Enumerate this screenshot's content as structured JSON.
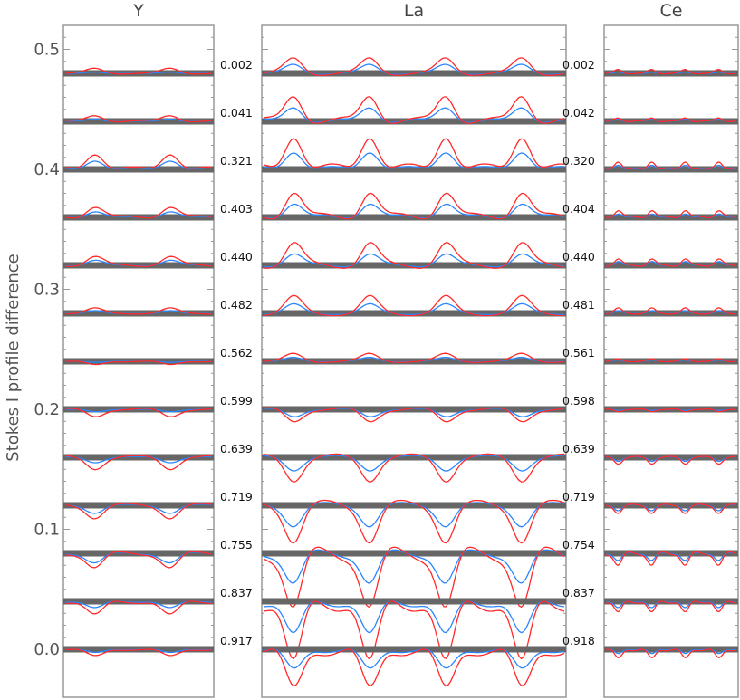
{
  "chart_data": {
    "type": "line",
    "ylabel": "Stokes I profile difference",
    "ylim": [
      -0.04,
      0.52
    ],
    "y_ticks": [
      "0.0",
      "0.1",
      "0.2",
      "0.3",
      "0.4",
      "0.5"
    ],
    "y_tick_values": [
      0.0,
      0.1,
      0.2,
      0.3,
      0.4,
      0.5
    ],
    "row_offsets": [
      0.48,
      0.44,
      0.4,
      0.36,
      0.32,
      0.28,
      0.24,
      0.2,
      0.16,
      0.12,
      0.08,
      0.04,
      0.0
    ],
    "colors": {
      "series_a": "#ff2a2a",
      "series_b": "#2a86ff",
      "baseline": "#666666",
      "axis": "#999999"
    },
    "panels": [
      {
        "title": "Y",
        "row_labels": [],
        "n_lines": 2,
        "red_amplitude": [
          0.004,
          0.005,
          0.014,
          0.009,
          0.007,
          0.004,
          -0.003,
          -0.006,
          -0.009,
          -0.01,
          -0.012,
          -0.012,
          -0.006
        ],
        "blue_amplitude": [
          0.001,
          0.002,
          0.008,
          0.005,
          0.004,
          0.002,
          -0.001,
          -0.002,
          -0.004,
          -0.006,
          -0.008,
          -0.006,
          -0.003
        ]
      },
      {
        "title": "La",
        "row_labels": [
          "0.002",
          "0.041",
          "0.321",
          "0.403",
          "0.440",
          "0.482",
          "0.562",
          "0.599",
          "0.639",
          "0.719",
          "0.755",
          "0.837",
          "0.917"
        ],
        "n_lines": 4,
        "red_amplitude": [
          0.012,
          0.022,
          0.03,
          0.022,
          0.018,
          0.013,
          0.006,
          -0.01,
          -0.018,
          -0.028,
          -0.045,
          -0.055,
          -0.035
        ],
        "blue_amplitude": [
          0.007,
          0.012,
          0.016,
          0.012,
          0.009,
          0.007,
          0.003,
          -0.006,
          -0.01,
          -0.016,
          -0.025,
          -0.03,
          -0.018
        ]
      },
      {
        "title": "Ce",
        "row_labels": [
          "0.002",
          "0.042",
          "0.320",
          "0.404",
          "0.440",
          "0.481",
          "0.561",
          "0.598",
          "0.639",
          "0.719",
          "0.754",
          "0.837",
          "0.918"
        ],
        "n_lines": 4,
        "red_amplitude": [
          0.003,
          0.003,
          0.007,
          0.006,
          0.005,
          0.004,
          0.002,
          -0.002,
          -0.005,
          -0.006,
          -0.01,
          -0.01,
          -0.008
        ],
        "blue_amplitude": [
          0.001,
          0.002,
          0.004,
          0.003,
          0.003,
          0.002,
          0.001,
          -0.001,
          -0.003,
          -0.004,
          -0.006,
          -0.006,
          -0.004
        ]
      }
    ]
  }
}
